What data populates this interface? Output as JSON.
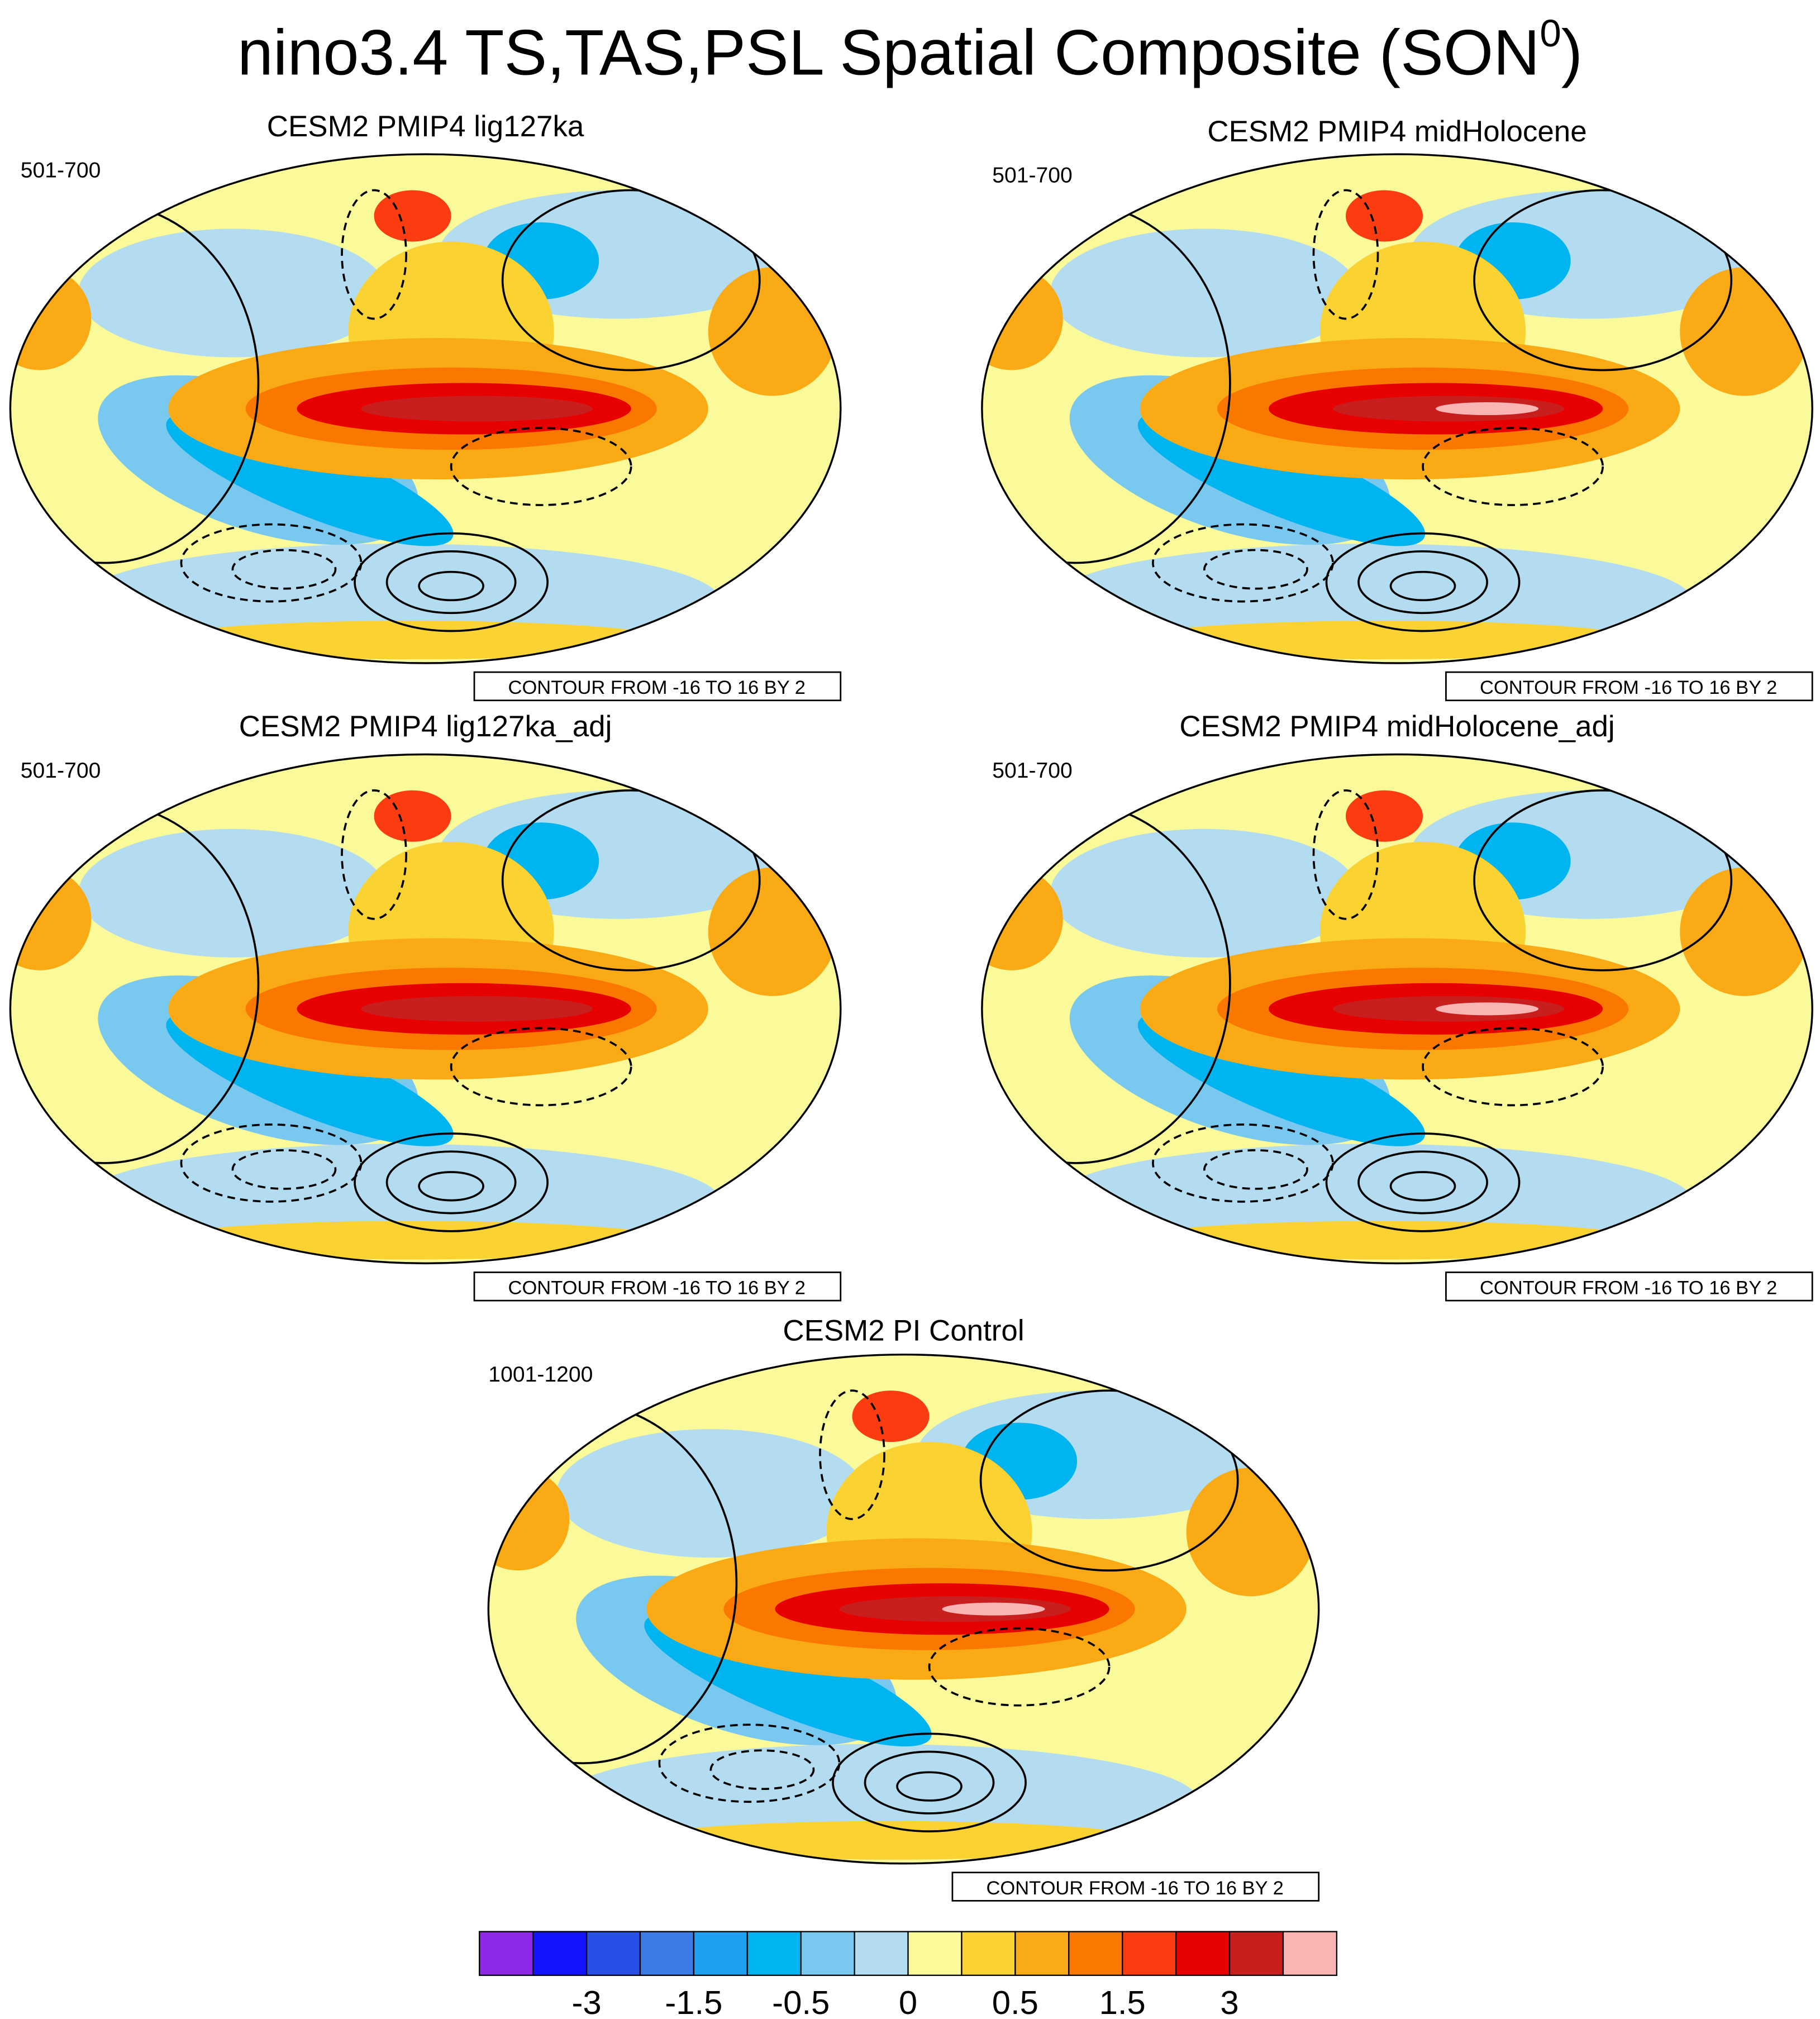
{
  "title": "nino3.4 TS,TAS,PSL Spatial Composite (SON",
  "title_superscript": "0",
  "title_end": ")",
  "panels": [
    {
      "title": "CESM2 PMIP4 lig127ka",
      "years": "501-700",
      "contour_note": "CONTOUR FROM -16 TO 16 BY 2"
    },
    {
      "title": "CESM2 PMIP4 midHolocene",
      "years": "501-700",
      "contour_note": "CONTOUR FROM -16 TO 16 BY 2"
    },
    {
      "title": "CESM2 PMIP4 lig127ka_adj",
      "years": "501-700",
      "contour_note": "CONTOUR FROM -16 TO 16 BY 2"
    },
    {
      "title": "CESM2 PMIP4 midHolocene_adj",
      "years": "501-700",
      "contour_note": "CONTOUR FROM -16 TO 16 BY 2"
    },
    {
      "title": "CESM2 PI Control",
      "years": "1001-1200",
      "contour_note": "CONTOUR FROM -16 TO 16 BY 2"
    }
  ],
  "colorbar": {
    "colors": [
      "#8c28e6",
      "#1414ff",
      "#2850e6",
      "#3c7ae6",
      "#1ea0f0",
      "#00b4f0",
      "#78c8f0",
      "#b4dcf0",
      "#fafa9a",
      "#fad232",
      "#faaa14",
      "#fa7800",
      "#fa3c10",
      "#e60000",
      "#c81e1e",
      "#fab4b4"
    ],
    "labels": [
      -3,
      -1.5,
      -0.5,
      0,
      0.5,
      1.5,
      3
    ]
  }
}
